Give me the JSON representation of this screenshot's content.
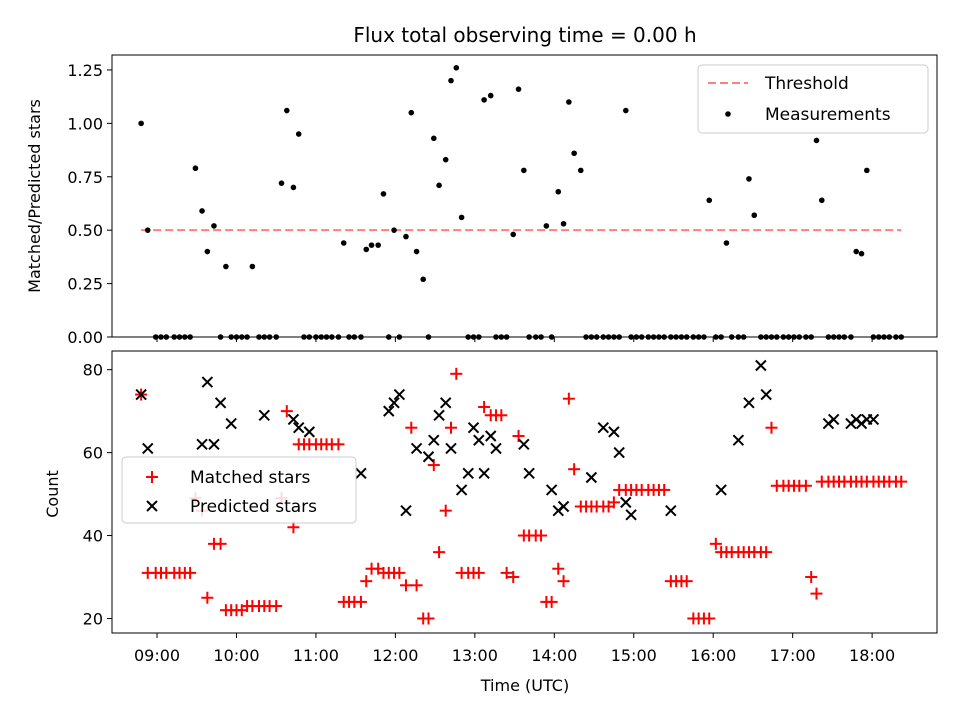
{
  "chart_data": [
    {
      "type": "scatter",
      "title": "Flux total observing time = 0.00 h",
      "xlabel": "",
      "ylabel": "Matched/Predicted stars",
      "xlim": [
        "08:26",
        "18:49"
      ],
      "ylim": [
        0,
        1.32
      ],
      "yticks": [
        0.0,
        0.25,
        0.5,
        0.75,
        1.0,
        1.25
      ],
      "ytick_labels": [
        "0.00",
        "0.25",
        "0.50",
        "0.75",
        "1.00",
        "1.25"
      ],
      "legend": {
        "placement": "top-right",
        "entries": [
          "Threshold",
          "Measurements"
        ]
      },
      "series": [
        {
          "name": "Threshold",
          "style": "dashed-line",
          "color": "#ff7f7f",
          "x": [
            "08:48",
            "18:22"
          ],
          "y": [
            0.5,
            0.5
          ]
        },
        {
          "name": "Measurements",
          "style": "dot",
          "color": "#000000",
          "x": [
            "08:48",
            "08:53",
            "08:59",
            "09:03",
            "09:07",
            "09:13",
            "09:17",
            "09:21",
            "09:25",
            "09:29",
            "09:34",
            "09:38",
            "09:43",
            "09:48",
            "09:52",
            "09:56",
            "10:00",
            "10:04",
            "10:08",
            "10:12",
            "10:17",
            "10:21",
            "10:25",
            "10:30",
            "10:34",
            "10:38",
            "10:43",
            "10:47",
            "10:51",
            "10:55",
            "11:00",
            "11:04",
            "11:08",
            "11:12",
            "11:17",
            "11:21",
            "11:25",
            "11:29",
            "11:34",
            "11:38",
            "11:42",
            "11:47",
            "11:51",
            "11:55",
            "11:59",
            "12:03",
            "12:08",
            "12:12",
            "12:16",
            "12:21",
            "12:25",
            "12:29",
            "12:33",
            "12:38",
            "12:42",
            "12:46",
            "12:50",
            "12:55",
            "12:59",
            "13:03",
            "13:07",
            "13:12",
            "13:16",
            "13:20",
            "13:24",
            "13:29",
            "13:33",
            "13:37",
            "13:41",
            "13:46",
            "13:50",
            "13:54",
            "13:58",
            "14:03",
            "14:07",
            "14:11",
            "14:15",
            "14:20",
            "14:24",
            "14:28",
            "14:32",
            "14:37",
            "14:41",
            "14:45",
            "14:49",
            "14:54",
            "14:58",
            "15:02",
            "15:06",
            "15:11",
            "15:15",
            "15:19",
            "15:23",
            "15:28",
            "15:32",
            "15:36",
            "15:40",
            "15:45",
            "15:49",
            "15:53",
            "15:57",
            "16:02",
            "16:06",
            "16:10",
            "16:14",
            "16:19",
            "16:23",
            "16:27",
            "16:31",
            "16:36",
            "16:40",
            "16:44",
            "16:48",
            "16:53",
            "16:57",
            "17:01",
            "17:05",
            "17:10",
            "17:14",
            "17:18",
            "17:22",
            "17:27",
            "17:31",
            "17:35",
            "17:39",
            "17:44",
            "17:48",
            "17:52",
            "17:56",
            "18:01",
            "18:05",
            "18:09",
            "18:13",
            "18:18",
            "18:22"
          ],
          "y": [
            1.0,
            0.5,
            0.0,
            0.0,
            0.0,
            0.0,
            0.0,
            0.0,
            0.0,
            0.79,
            0.59,
            0.4,
            0.52,
            0.0,
            0.33,
            0.0,
            0.0,
            0.0,
            0.0,
            0.33,
            0.0,
            0.0,
            0.0,
            0.0,
            0.72,
            1.06,
            0.7,
            0.95,
            0.0,
            0.0,
            0.0,
            0.0,
            0.0,
            0.0,
            0.0,
            0.44,
            0.0,
            0.0,
            0.0,
            0.41,
            0.43,
            0.43,
            0.67,
            0.0,
            0.5,
            0.0,
            0.47,
            1.05,
            0.4,
            0.27,
            0.0,
            0.93,
            0.71,
            0.83,
            1.2,
            1.26,
            0.56,
            0.0,
            0.0,
            0.0,
            1.11,
            1.13,
            0.0,
            0.0,
            0.0,
            0.48,
            1.16,
            0.78,
            0.0,
            0.0,
            0.0,
            0.52,
            0.0,
            0.68,
            0.53,
            1.1,
            0.86,
            0.78,
            0.0,
            0.0,
            0.0,
            0.0,
            0.0,
            0.0,
            0.0,
            1.06,
            0.0,
            0.0,
            0.0,
            0.0,
            0.0,
            0.0,
            0.0,
            0.0,
            0.0,
            0.0,
            0.0,
            0.0,
            0.0,
            0.0,
            0.64,
            0.0,
            0.0,
            0.44,
            0.0,
            0.0,
            0.0,
            0.74,
            0.57,
            0.0,
            0.0,
            0.0,
            0.0,
            0.0,
            0.0,
            0.0,
            0.0,
            0.0,
            0.0,
            0.92,
            0.64,
            0.0,
            0.0,
            0.0,
            0.0,
            0.0,
            0.4,
            0.39,
            0.78,
            0.0,
            0.0,
            0.0,
            0.0,
            0.0,
            0.0
          ]
        }
      ]
    },
    {
      "type": "scatter",
      "title": "",
      "xlabel": "Time (UTC)",
      "ylabel": "Count",
      "xlim": [
        "08:26",
        "18:49"
      ],
      "ylim": [
        16.5,
        84.5
      ],
      "xticks": [
        "09:00",
        "10:00",
        "11:00",
        "12:00",
        "13:00",
        "14:00",
        "15:00",
        "16:00",
        "17:00",
        "18:00"
      ],
      "xtick_labels": [
        "09:00",
        "10:00",
        "11:00",
        "12:00",
        "13:00",
        "14:00",
        "15:00",
        "16:00",
        "17:00",
        "18:00"
      ],
      "yticks": [
        20,
        40,
        60,
        80
      ],
      "ytick_labels": [
        "20",
        "40",
        "60",
        "80"
      ],
      "legend": {
        "placement": "center-left",
        "entries": [
          "Matched stars",
          "Predicted stars"
        ]
      },
      "series": [
        {
          "name": "Matched stars",
          "style": "plus",
          "color": "#ff0000",
          "x": [
            "08:48",
            "08:53",
            "08:59",
            "09:03",
            "09:07",
            "09:13",
            "09:17",
            "09:21",
            "09:25",
            "09:29",
            "09:34",
            "09:38",
            "09:43",
            "09:48",
            "09:52",
            "09:56",
            "10:00",
            "10:04",
            "10:08",
            "10:12",
            "10:17",
            "10:21",
            "10:25",
            "10:30",
            "10:34",
            "10:38",
            "10:43",
            "10:47",
            "10:51",
            "10:55",
            "11:00",
            "11:04",
            "11:08",
            "11:12",
            "11:17",
            "11:21",
            "11:25",
            "11:29",
            "11:34",
            "11:38",
            "11:42",
            "11:47",
            "11:51",
            "11:55",
            "11:59",
            "12:03",
            "12:08",
            "12:12",
            "12:16",
            "12:21",
            "12:25",
            "12:29",
            "12:33",
            "12:38",
            "12:42",
            "12:46",
            "12:50",
            "12:55",
            "12:59",
            "13:03",
            "13:07",
            "13:12",
            "13:16",
            "13:20",
            "13:24",
            "13:29",
            "13:33",
            "13:37",
            "13:41",
            "13:46",
            "13:50",
            "13:54",
            "13:58",
            "14:03",
            "14:07",
            "14:11",
            "14:15",
            "14:20",
            "14:24",
            "14:28",
            "14:32",
            "14:37",
            "14:41",
            "14:45",
            "14:49",
            "14:54",
            "14:58",
            "15:02",
            "15:06",
            "15:11",
            "15:15",
            "15:19",
            "15:23",
            "15:28",
            "15:32",
            "15:36",
            "15:40",
            "15:45",
            "15:49",
            "15:53",
            "15:57",
            "16:02",
            "16:06",
            "16:10",
            "16:14",
            "16:19",
            "16:23",
            "16:27",
            "16:31",
            "16:36",
            "16:40",
            "16:44",
            "16:48",
            "16:53",
            "16:57",
            "17:01",
            "17:05",
            "17:10",
            "17:14",
            "17:18",
            "17:22",
            "17:27",
            "17:31",
            "17:35",
            "17:39",
            "17:44",
            "17:48",
            "17:52",
            "17:56",
            "18:01",
            "18:05",
            "18:09",
            "18:13",
            "18:18",
            "18:22"
          ],
          "y": [
            74,
            31,
            31,
            31,
            31,
            31,
            31,
            31,
            31,
            49,
            46,
            25,
            38,
            38,
            22,
            22,
            22,
            22,
            23,
            23,
            23,
            23,
            23,
            23,
            49,
            70,
            42,
            62,
            62,
            62,
            62,
            62,
            62,
            62,
            62,
            24,
            24,
            24,
            24,
            29,
            32,
            32,
            31,
            31,
            31,
            31,
            28,
            66,
            28,
            20,
            20,
            57,
            36,
            46,
            66,
            79,
            31,
            31,
            31,
            31,
            71,
            69,
            69,
            69,
            31,
            30,
            64,
            40,
            40,
            40,
            40,
            24,
            24,
            32,
            29,
            73,
            56,
            47,
            47,
            47,
            47,
            47,
            47,
            48,
            51,
            51,
            51,
            51,
            51,
            51,
            51,
            51,
            51,
            29,
            29,
            29,
            29,
            20,
            20,
            20,
            20,
            38,
            36,
            36,
            36,
            36,
            36,
            36,
            36,
            36,
            36,
            66,
            52,
            52,
            52,
            52,
            52,
            52,
            30,
            26,
            53,
            53,
            53,
            53,
            53,
            53,
            53,
            53,
            53,
            53,
            53,
            53,
            53,
            53,
            53
          ]
        },
        {
          "name": "Predicted stars",
          "style": "x",
          "color": "#000000",
          "x": [
            "08:48",
            "08:53",
            "09:34",
            "09:38",
            "09:43",
            "09:48",
            "09:56",
            "10:21",
            "10:43",
            "10:47",
            "10:55",
            "11:34",
            "11:55",
            "11:59",
            "12:03",
            "12:08",
            "12:16",
            "12:25",
            "12:29",
            "12:33",
            "12:38",
            "12:42",
            "12:50",
            "12:55",
            "12:59",
            "13:03",
            "13:07",
            "13:12",
            "13:16",
            "13:37",
            "13:41",
            "13:58",
            "14:03",
            "14:07",
            "14:28",
            "14:37",
            "14:45",
            "14:49",
            "14:54",
            "14:58",
            "15:28",
            "16:06",
            "16:19",
            "16:27",
            "16:36",
            "16:40",
            "17:27",
            "17:31",
            "17:44",
            "17:48",
            "17:52",
            "17:56",
            "18:01"
          ],
          "y": [
            74,
            61,
            62,
            77,
            62,
            72,
            67,
            69,
            68,
            66,
            65,
            55,
            70,
            72,
            74,
            46,
            61,
            59,
            63,
            69,
            72,
            61,
            51,
            55,
            66,
            63,
            55,
            64,
            61,
            62,
            55,
            51,
            46,
            47,
            54,
            66,
            65,
            60,
            48,
            45,
            46,
            51,
            63,
            72,
            81,
            74,
            67,
            68,
            67,
            68,
            67,
            68,
            68
          ]
        }
      ]
    }
  ]
}
